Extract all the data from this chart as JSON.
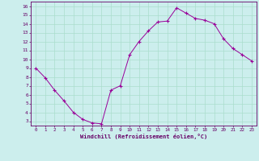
{
  "x": [
    0,
    1,
    2,
    3,
    4,
    5,
    6,
    7,
    8,
    9,
    10,
    11,
    12,
    13,
    14,
    15,
    16,
    17,
    18,
    19,
    20,
    21,
    22,
    23
  ],
  "y": [
    9.0,
    7.9,
    6.5,
    5.3,
    4.0,
    3.2,
    2.8,
    2.7,
    6.5,
    7.0,
    10.5,
    12.0,
    13.2,
    14.2,
    14.3,
    15.8,
    15.2,
    14.6,
    14.4,
    14.0,
    12.3,
    11.2,
    10.5,
    9.8
  ],
  "line_color": "#990099",
  "marker": "+",
  "marker_color": "#990099",
  "bg_color": "#cceeed",
  "grid_color": "#aaddcc",
  "xlabel": "Windchill (Refroidissement éolien,°C)",
  "ylabel_ticks": [
    3,
    4,
    5,
    6,
    7,
    8,
    9,
    10,
    11,
    12,
    13,
    14,
    15,
    16
  ],
  "xlim": [
    -0.5,
    23.5
  ],
  "ylim": [
    2.5,
    16.5
  ],
  "xlabel_color": "#660066",
  "tick_color": "#660066",
  "axis_color": "#660066",
  "figsize": [
    3.2,
    2.0
  ],
  "dpi": 100
}
